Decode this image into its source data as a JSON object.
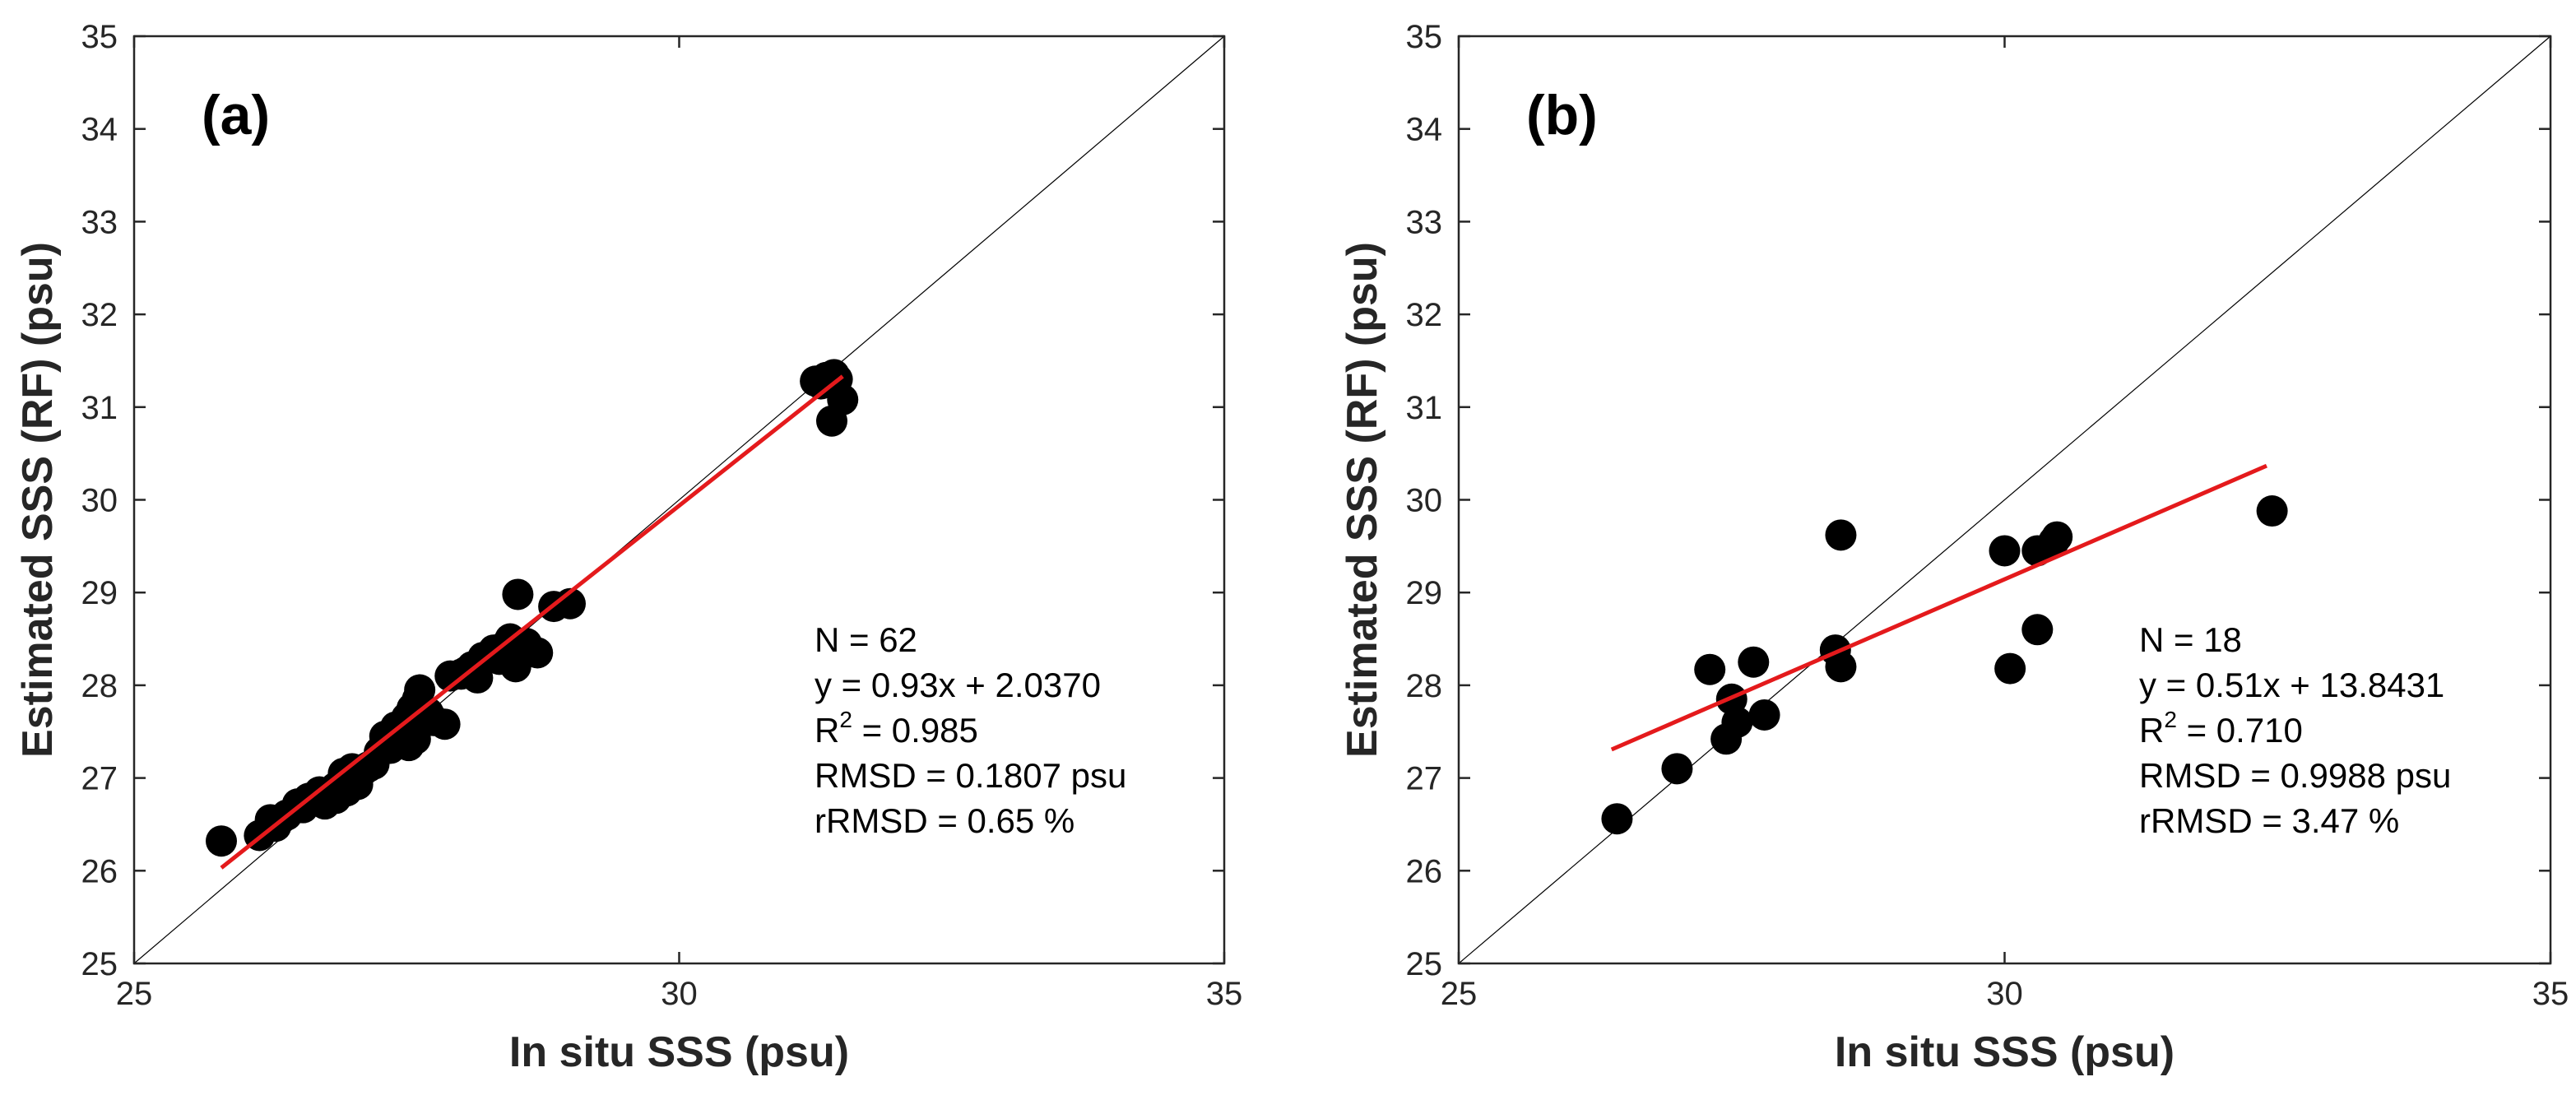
{
  "figure_title": "",
  "chart_data": [
    {
      "type": "scatter",
      "panel_label": "(a)",
      "title": "",
      "xlabel": "In situ SSS (psu)",
      "ylabel": "Estimated SSS (RF) (psu)",
      "xlim": [
        25,
        35
      ],
      "ylim": [
        25,
        35
      ],
      "xticks": [
        "25",
        "30",
        "35"
      ],
      "yticks": [
        "25",
        "26",
        "27",
        "28",
        "29",
        "30",
        "31",
        "32",
        "33",
        "34",
        "35"
      ],
      "one_to_one_line": true,
      "fit_line": {
        "slope": 0.93,
        "intercept": 2.037,
        "x_range": [
          25.8,
          31.5
        ],
        "color": "#e41a1c"
      },
      "marker_color": "#000000",
      "stats": {
        "n": "N = 62",
        "equation": "y = 0.93x + 2.0370",
        "r2_prefix": "R",
        "r2_sup": "2",
        "r2_value": " = 0.985",
        "rmsd": "RMSD = 0.1807 psu",
        "rrmsd": "rRMSD = 0.65 %"
      },
      "points": [
        [
          25.8,
          26.32
        ],
        [
          26.15,
          26.38
        ],
        [
          26.25,
          26.55
        ],
        [
          26.4,
          26.6
        ],
        [
          26.5,
          26.72
        ],
        [
          26.55,
          26.68
        ],
        [
          26.6,
          26.78
        ],
        [
          26.65,
          26.8
        ],
        [
          26.7,
          26.85
        ],
        [
          26.75,
          26.72
        ],
        [
          26.8,
          26.82
        ],
        [
          26.85,
          26.78
        ],
        [
          26.9,
          26.95
        ],
        [
          26.92,
          27.05
        ],
        [
          26.95,
          26.86
        ],
        [
          27.0,
          27.1
        ],
        [
          27.05,
          26.93
        ],
        [
          27.1,
          27.08
        ],
        [
          27.15,
          27.12
        ],
        [
          27.2,
          27.15
        ],
        [
          27.3,
          27.45
        ],
        [
          27.35,
          27.32
        ],
        [
          27.4,
          27.55
        ],
        [
          27.45,
          27.5
        ],
        [
          27.5,
          27.65
        ],
        [
          27.52,
          27.35
        ],
        [
          27.55,
          27.75
        ],
        [
          27.6,
          27.85
        ],
        [
          27.62,
          27.95
        ],
        [
          27.65,
          27.6
        ],
        [
          27.7,
          27.7
        ],
        [
          27.75,
          27.62
        ],
        [
          27.85,
          27.58
        ],
        [
          27.9,
          28.1
        ],
        [
          28.0,
          28.12
        ],
        [
          28.1,
          28.2
        ],
        [
          28.15,
          28.08
        ],
        [
          28.2,
          28.3
        ],
        [
          28.3,
          28.38
        ],
        [
          28.35,
          28.28
        ],
        [
          28.45,
          28.5
        ],
        [
          28.5,
          28.2
        ],
        [
          28.52,
          28.98
        ],
        [
          28.6,
          28.45
        ],
        [
          28.7,
          28.35
        ],
        [
          28.85,
          28.85
        ],
        [
          29.0,
          28.88
        ],
        [
          31.25,
          31.28
        ],
        [
          31.35,
          31.32
        ],
        [
          31.42,
          31.35
        ],
        [
          31.45,
          31.3
        ],
        [
          31.5,
          31.08
        ],
        [
          31.4,
          30.85
        ],
        [
          31.3,
          31.25
        ],
        [
          26.3,
          26.48
        ],
        [
          26.7,
          26.76
        ],
        [
          27.25,
          27.28
        ],
        [
          27.58,
          27.42
        ],
        [
          28.05,
          28.15
        ],
        [
          28.4,
          28.42
        ],
        [
          26.85,
          26.9
        ],
        [
          27.47,
          27.58
        ]
      ]
    },
    {
      "type": "scatter",
      "panel_label": "(b)",
      "title": "",
      "xlabel": "In situ SSS (psu)",
      "ylabel": "Estimated SSS (RF) (psu)",
      "xlim": [
        25,
        35
      ],
      "ylim": [
        25,
        35
      ],
      "xticks": [
        "25",
        "30",
        "35"
      ],
      "yticks": [
        "25",
        "26",
        "27",
        "28",
        "29",
        "30",
        "31",
        "32",
        "33",
        "34",
        "35"
      ],
      "one_to_one_line": true,
      "fit_line": {
        "slope": 0.51,
        "intercept": 13.8431,
        "x_range": [
          26.4,
          32.4
        ],
        "color": "#e41a1c"
      },
      "marker_color": "#000000",
      "stats": {
        "n": "N = 18",
        "equation": "y = 0.51x + 13.8431",
        "r2_prefix": "R",
        "r2_sup": "2",
        "r2_value": " = 0.710",
        "rmsd": "RMSD = 0.9988 psu",
        "rrmsd": "rRMSD = 3.47 %"
      },
      "points": [
        [
          26.45,
          26.56
        ],
        [
          27.0,
          27.1
        ],
        [
          27.3,
          28.17
        ],
        [
          27.45,
          27.42
        ],
        [
          27.5,
          27.85
        ],
        [
          27.55,
          27.6
        ],
        [
          27.7,
          28.25
        ],
        [
          27.8,
          27.68
        ],
        [
          28.45,
          28.38
        ],
        [
          28.5,
          28.2
        ],
        [
          28.5,
          29.62
        ],
        [
          30.0,
          29.45
        ],
        [
          30.05,
          28.18
        ],
        [
          30.3,
          29.45
        ],
        [
          30.3,
          28.6
        ],
        [
          30.45,
          29.55
        ],
        [
          30.48,
          29.6
        ],
        [
          32.45,
          29.88
        ]
      ]
    }
  ]
}
